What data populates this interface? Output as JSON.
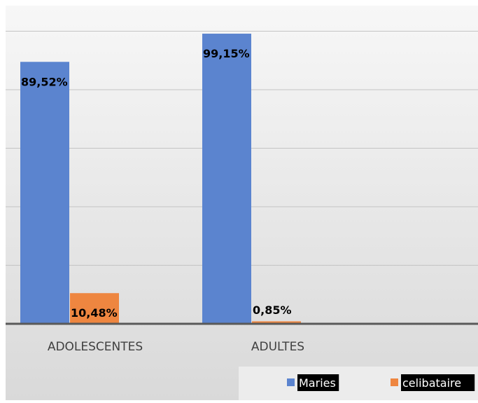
{
  "chart_data": {
    "type": "bar",
    "title": "",
    "xlabel": "",
    "ylabel": "",
    "categories": [
      "ADOLESCENTES",
      "ADULTES"
    ],
    "series": [
      {
        "name": "Maries",
        "values": [
          89.52,
          99.15
        ],
        "labels": [
          "89,52%",
          "99,15%"
        ]
      },
      {
        "name": "celibataire",
        "values": [
          10.48,
          0.85
        ],
        "labels": [
          "10,48%",
          "0,85%"
        ]
      }
    ],
    "ylim": [
      0,
      100
    ],
    "grid": true,
    "legend_position": "bottom-right",
    "colors": {
      "Maries": "#5b84cf",
      "celibataire": "#ee8640",
      "background_top": "#f7f7f7",
      "background_bottom": "#d9d9d9",
      "gridline": "#c4c4c4",
      "axis": "#595959",
      "legend_label_bg": "#000000",
      "legend_label_text": "#ffffff"
    }
  }
}
